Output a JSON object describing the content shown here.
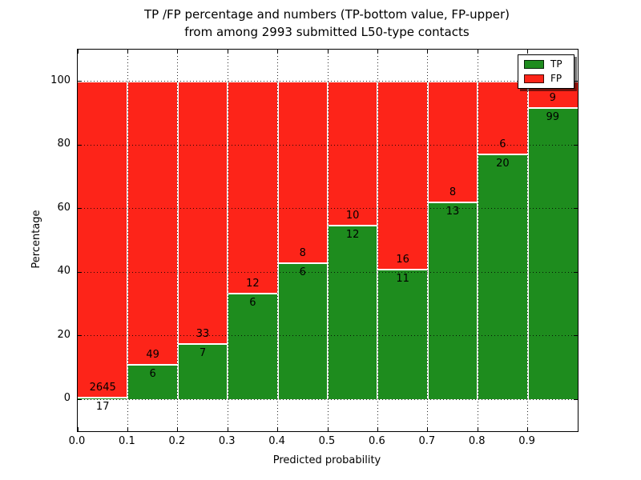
{
  "title": {
    "line1": "TP /FP percentage and numbers (TP-bottom value, FP-upper)",
    "line2": "from among 2993 submitted L50-type contacts"
  },
  "chart_data": {
    "type": "bar",
    "subtype": "stacked-100pct-histogram",
    "title": "TP /FP percentage and numbers (TP-bottom value, FP-upper) from among 2993 submitted L50-type contacts",
    "xlabel": "Predicted probability",
    "ylabel": "Percentage",
    "xlim": [
      0.0,
      1.0
    ],
    "ylim": [
      -10,
      110
    ],
    "bin_width": 0.1,
    "bin_starts": [
      0.0,
      0.1,
      0.2,
      0.3,
      0.4,
      0.5,
      0.6,
      0.7,
      0.8,
      0.9
    ],
    "series": [
      {
        "name": "TP",
        "color": "#1e8c1e",
        "counts": [
          17,
          6,
          7,
          6,
          6,
          12,
          11,
          13,
          20,
          99
        ]
      },
      {
        "name": "FP",
        "color": "#fd2419",
        "counts": [
          2645,
          49,
          33,
          12,
          8,
          10,
          16,
          8,
          6,
          9
        ]
      }
    ],
    "tp_percent_per_bin": [
      0.64,
      10.91,
      17.5,
      33.33,
      42.86,
      54.55,
      40.74,
      61.9,
      76.92,
      91.67
    ],
    "bar_edge_color": "#ffffff",
    "grid": true,
    "grid_style": "dotted",
    "xticks": [
      {
        "value": 0.0,
        "label": "0.0"
      },
      {
        "value": 0.1,
        "label": "0.1"
      },
      {
        "value": 0.2,
        "label": "0.2"
      },
      {
        "value": 0.3,
        "label": "0.3"
      },
      {
        "value": 0.4,
        "label": "0.4"
      },
      {
        "value": 0.5,
        "label": "0.5"
      },
      {
        "value": 0.6,
        "label": "0.6"
      },
      {
        "value": 0.7,
        "label": "0.7"
      },
      {
        "value": 0.8,
        "label": "0.8"
      },
      {
        "value": 0.9,
        "label": "0.9"
      }
    ],
    "yticks": [
      {
        "value": 0,
        "label": "0"
      },
      {
        "value": 20,
        "label": "20"
      },
      {
        "value": 40,
        "label": "40"
      },
      {
        "value": 60,
        "label": "60"
      },
      {
        "value": 80,
        "label": "80"
      },
      {
        "value": 100,
        "label": "100"
      }
    ],
    "legend": {
      "position": "upper-right",
      "entries": [
        {
          "label": "TP",
          "color": "#1e8c1e"
        },
        {
          "label": "FP",
          "color": "#fd2419"
        }
      ]
    }
  }
}
